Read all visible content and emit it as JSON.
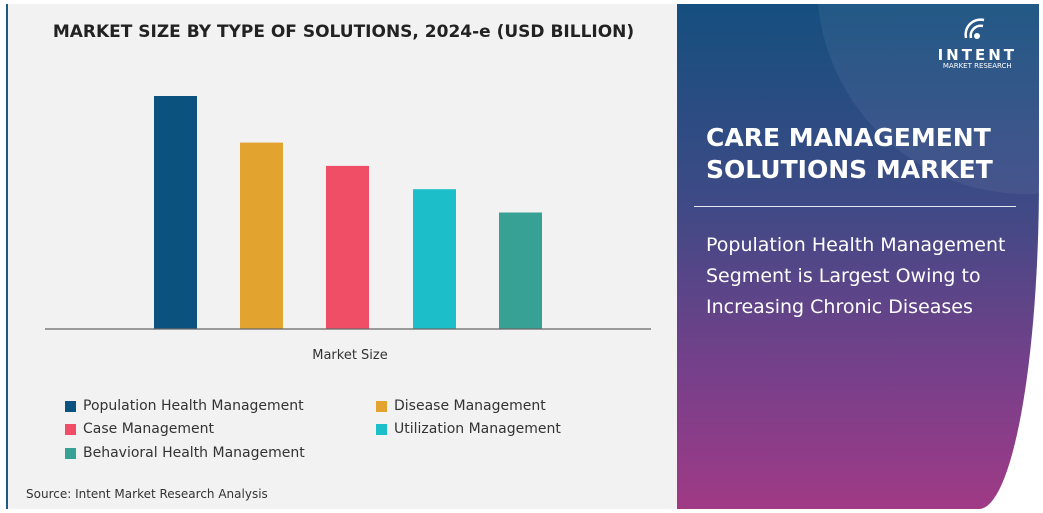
{
  "chart_data": {
    "type": "bar",
    "title": "MARKET SIZE BY TYPE OF SOLUTIONS, 2024-e (USD BILLION)",
    "xlabel": "Market Size",
    "ylabel": "",
    "categories": [
      "Population Health Management",
      "Disease Management",
      "Case Management",
      "Utilization Management",
      "Behavioral Health Management"
    ],
    "values": [
      100,
      80,
      70,
      60,
      50
    ],
    "value_note": "relative heights, no axis printed",
    "colors": [
      "#0b527e",
      "#e2a42f",
      "#f04e67",
      "#1cbfc9",
      "#37a195"
    ],
    "grid": false,
    "legend_position": "bottom"
  },
  "source": "Source: Intent Market Research Analysis",
  "brand": {
    "name": "INTENT",
    "tagline": "MARKET RESEARCH"
  },
  "panel": {
    "title": "CARE MANAGEMENT SOLUTIONS MARKET",
    "subtitle": "Population Health Management Segment is Largest Owing to Increasing Chronic Diseases"
  }
}
